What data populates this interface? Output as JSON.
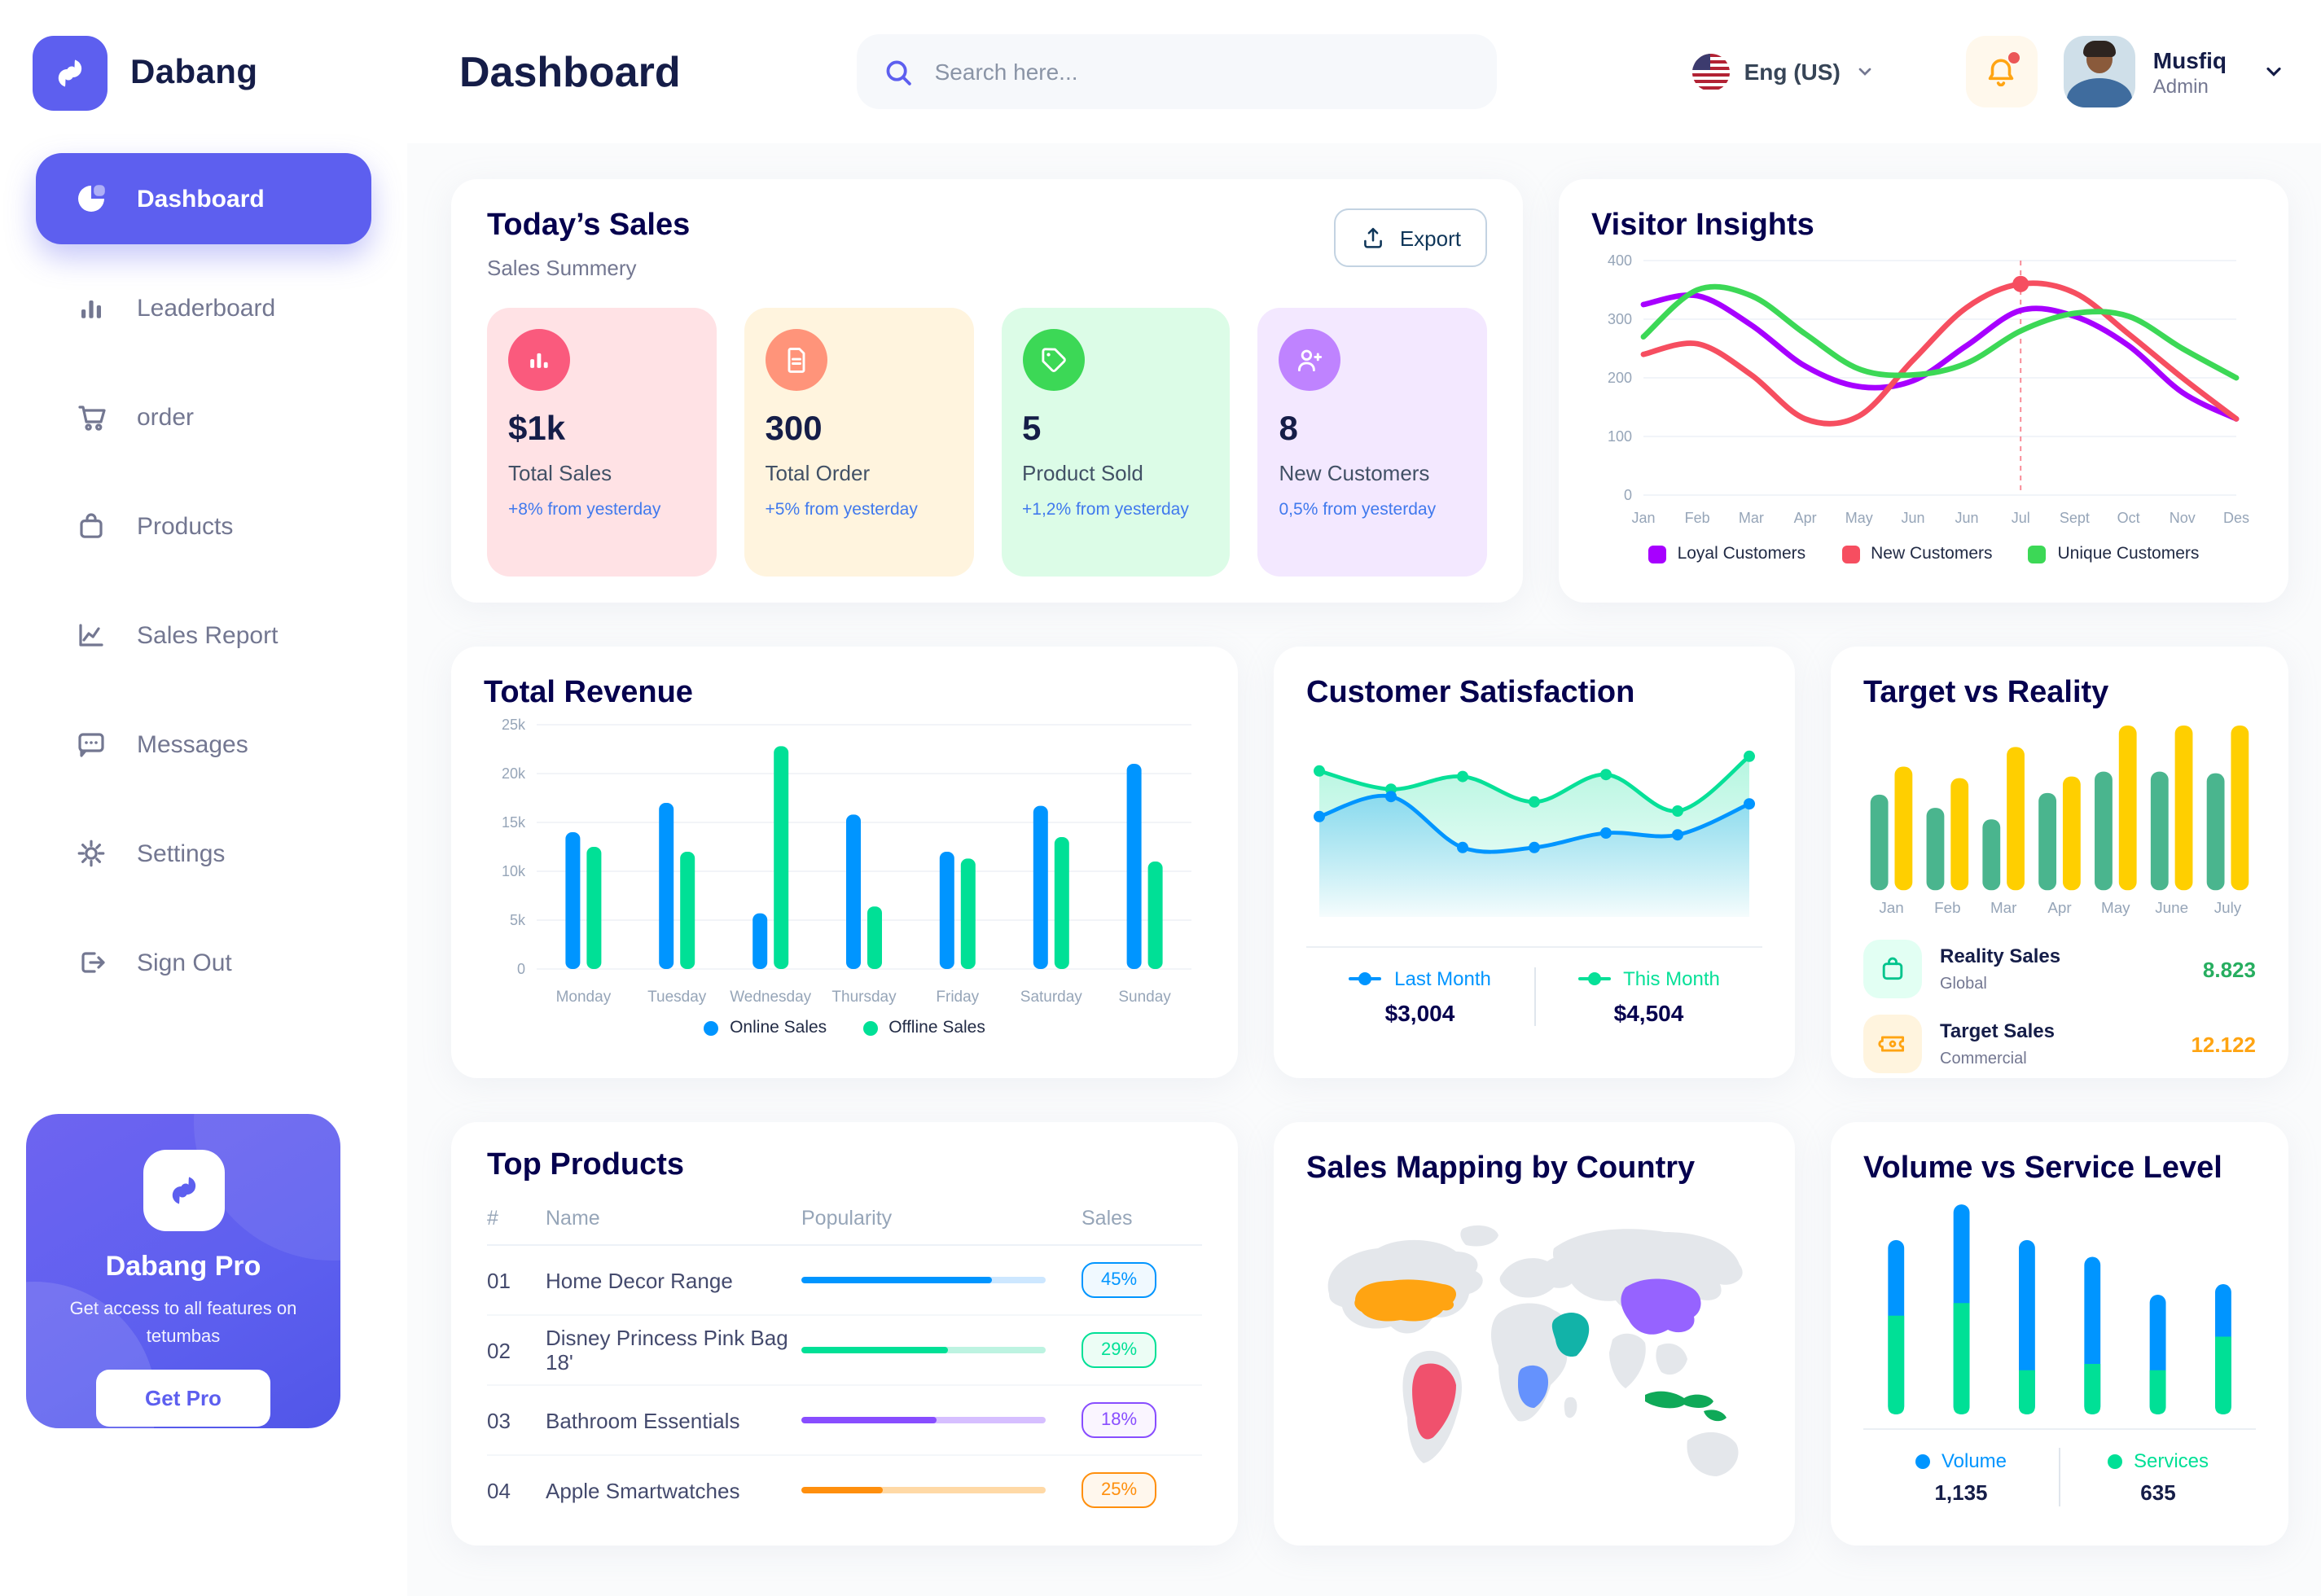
{
  "app": {
    "brand": "Dabang",
    "accent_color": "#5D5FEF"
  },
  "header": {
    "title": "Dashboard",
    "search_placeholder": "Search here...",
    "language": "Eng (US)",
    "user_name": "Musfiq",
    "user_role": "Admin"
  },
  "sidebar": {
    "items": [
      {
        "label": "Dashboard",
        "icon": "pie-chart-icon",
        "active": true
      },
      {
        "label": "Leaderboard",
        "icon": "bar-chart-icon",
        "active": false
      },
      {
        "label": "order",
        "icon": "cart-icon",
        "active": false
      },
      {
        "label": "Products",
        "icon": "bag-icon",
        "active": false
      },
      {
        "label": "Sales Report",
        "icon": "line-chart-icon",
        "active": false
      },
      {
        "label": "Messages",
        "icon": "message-icon",
        "active": false
      },
      {
        "label": "Settings",
        "icon": "gear-icon",
        "active": false
      },
      {
        "label": "Sign Out",
        "icon": "sign-out-icon",
        "active": false
      }
    ],
    "pro": {
      "title": "Dabang Pro",
      "text": "Get access to all features on tetumbas",
      "button": "Get Pro"
    }
  },
  "today": {
    "title": "Today’s Sales",
    "subtitle": "Sales Summery",
    "export_label": "Export",
    "cards": [
      {
        "value": "$1k",
        "label": "Total Sales",
        "delta": "+8% from yesterday",
        "bg": "#FFE2E5",
        "icon_bg": "#FA5A7D",
        "icon": "chart-bars-icon"
      },
      {
        "value": "300",
        "label": "Total Order",
        "delta": "+5% from yesterday",
        "bg": "#FFF4DE",
        "icon_bg": "#FF947A",
        "icon": "file-icon"
      },
      {
        "value": "5",
        "label": "Product Sold",
        "delta": "+1,2% from yesterday",
        "bg": "#DCFCE7",
        "icon_bg": "#3CD856",
        "icon": "tag-icon"
      },
      {
        "value": "8",
        "label": "New Customers",
        "delta": "0,5% from yesterday",
        "bg": "#F3E8FF",
        "icon_bg": "#BF83FF",
        "icon": "user-plus-icon"
      }
    ]
  },
  "chart_data": [
    {
      "id": "visitor-insights",
      "type": "line",
      "title": "Visitor Insights",
      "categories": [
        "Jan",
        "Feb",
        "Mar",
        "Apr",
        "May",
        "Jun",
        "Jun",
        "Jul",
        "Sept",
        "Oct",
        "Nov",
        "Des"
      ],
      "ylim": [
        0,
        400
      ],
      "yticks": [
        0,
        100,
        200,
        300,
        400
      ],
      "grid": true,
      "legend_position": "bottom",
      "series": [
        {
          "name": "Loyal Customers",
          "color": "#A700FF",
          "values": [
            325,
            340,
            290,
            220,
            185,
            195,
            255,
            315,
            305,
            255,
            175,
            130
          ]
        },
        {
          "name": "New Customers",
          "color": "#F64E60",
          "values": [
            240,
            258,
            205,
            130,
            135,
            230,
            320,
            360,
            345,
            275,
            200,
            130
          ]
        },
        {
          "name": "Unique Customers",
          "color": "#3CD856",
          "values": [
            270,
            350,
            340,
            275,
            215,
            205,
            225,
            280,
            310,
            305,
            250,
            200
          ]
        }
      ],
      "marker": {
        "series": "New Customers",
        "index": 7,
        "color": "#F64E60"
      }
    },
    {
      "id": "total-revenue",
      "type": "bar",
      "title": "Total Revenue",
      "categories": [
        "Monday",
        "Tuesday",
        "Wednesday",
        "Thursday",
        "Friday",
        "Saturday",
        "Sunday"
      ],
      "ylim": [
        0,
        25000
      ],
      "yticks": [
        [
          0,
          "0"
        ],
        [
          5000,
          "5k"
        ],
        [
          10000,
          "10k"
        ],
        [
          15000,
          "15k"
        ],
        [
          20000,
          "20k"
        ],
        [
          25000,
          "25k"
        ]
      ],
      "grid": true,
      "legend_position": "bottom",
      "series": [
        {
          "name": "Online Sales",
          "color": "#0095FF",
          "values": [
            14000,
            17000,
            5700,
            15800,
            12000,
            16700,
            21000
          ]
        },
        {
          "name": "Offline Sales",
          "color": "#00E096",
          "values": [
            12500,
            12000,
            22800,
            6400,
            11300,
            13500,
            11000
          ]
        }
      ]
    },
    {
      "id": "customer-satisfaction",
      "type": "area",
      "title": "Customer Satisfaction",
      "ylim": [
        0,
        100
      ],
      "grid": false,
      "legend_position": "bottom",
      "series": [
        {
          "name": "This Month",
          "color": "#07E098",
          "total": "$4,504",
          "values": [
            80,
            70,
            77,
            63,
            78,
            58,
            88
          ]
        },
        {
          "name": "Last Month",
          "color": "#0095FF",
          "total": "$3,004",
          "values": [
            55,
            66,
            38,
            38,
            46,
            45,
            62
          ]
        }
      ]
    },
    {
      "id": "target-vs-reality",
      "type": "bar",
      "title": "Target vs Reality",
      "categories": [
        "Jan",
        "Feb",
        "Mar",
        "Apr",
        "May",
        "June",
        "July"
      ],
      "ylim": [
        0,
        10
      ],
      "grid": false,
      "legend_position": "none",
      "series": [
        {
          "name": "Reality Sales",
          "color": "#4AB58E",
          "values": [
            5.8,
            5.0,
            4.3,
            5.9,
            7.2,
            7.2,
            7.1
          ]
        },
        {
          "name": "Target Sales",
          "color": "#FFCF00",
          "values": [
            7.5,
            6.8,
            8.7,
            6.9,
            10,
            10,
            10
          ]
        }
      ],
      "summary": [
        {
          "label": "Reality Sales",
          "sublabel": "Global",
          "value": "8.823",
          "value_color": "#27AE60",
          "tile_bg": "#E2FFF3",
          "icon": "bag-icon",
          "icon_color": "#00C48C"
        },
        {
          "label": "Target Sales",
          "sublabel": "Commercial",
          "value": "12.122",
          "value_color": "#FFA412",
          "tile_bg": "#FFF4DE",
          "icon": "ticket-icon",
          "icon_color": "#FFA412"
        }
      ]
    },
    {
      "id": "sales-map",
      "type": "map",
      "title": "Sales Mapping by Country",
      "countries": [
        {
          "key": "usa",
          "name": "United States",
          "color": "#FFA412"
        },
        {
          "key": "brazil",
          "name": "Brazil",
          "color": "#F0516D"
        },
        {
          "key": "congo",
          "name": "DR Congo",
          "color": "#6592FD"
        },
        {
          "key": "saudi",
          "name": "Saudi Arabia",
          "color": "#12B3A8"
        },
        {
          "key": "china",
          "name": "China",
          "color": "#9663FF"
        },
        {
          "key": "indonesia",
          "name": "Indonesia",
          "color": "#0FA958"
        }
      ],
      "base_color": "#E4E7EB"
    },
    {
      "id": "volume-service",
      "type": "stacked-bar",
      "title": "Volume vs Service Level",
      "ylim": [
        0,
        10
      ],
      "grid": false,
      "legend_position": "bottom",
      "series": [
        {
          "name": "Volume",
          "color": "#0095FF",
          "total": "1,135",
          "values": [
            3.6,
            4.7,
            6.2,
            5.1,
            3.6,
            2.5
          ]
        },
        {
          "name": "Services",
          "color": "#00E096",
          "total": "635",
          "values": [
            4.7,
            5.3,
            2.1,
            2.4,
            2.1,
            3.7
          ]
        }
      ]
    },
    {
      "id": "top-products",
      "type": "table",
      "title": "Top Products",
      "columns": [
        "#",
        "Name",
        "Popularity",
        "Sales"
      ],
      "rows": [
        {
          "num": "01",
          "name": "Home Decor Range",
          "popularity": 78,
          "sales": "45%",
          "color": "#0095FF",
          "track": "#CDE7FF",
          "badge_bg": "#F0F9FF"
        },
        {
          "num": "02",
          "name": "Disney Princess Pink Bag 18'",
          "popularity": 60,
          "sales": "29%",
          "color": "#00E096",
          "track": "#BDF3E1",
          "badge_bg": "#ECFDF5"
        },
        {
          "num": "03",
          "name": "Bathroom Essentials",
          "popularity": 55,
          "sales": "18%",
          "color": "#884DFF",
          "track": "#D6BFFF",
          "badge_bg": "#FAF5FF"
        },
        {
          "num": "04",
          "name": "Apple Smartwatches",
          "popularity": 33,
          "sales": "25%",
          "color": "#FF8F0D",
          "track": "#FFD9A6",
          "badge_bg": "#FFF7ED"
        }
      ]
    }
  ]
}
